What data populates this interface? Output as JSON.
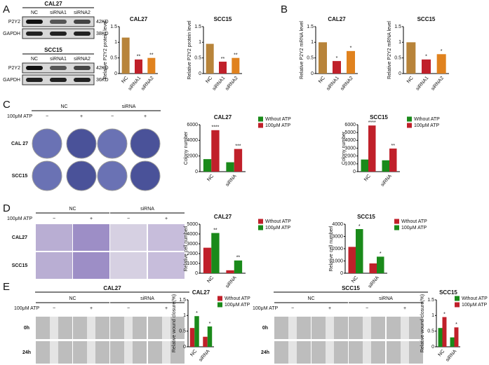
{
  "panel_labels": [
    "A",
    "B",
    "C",
    "D",
    "E"
  ],
  "blots": [
    {
      "title": "CAL27",
      "lanes": [
        "NC",
        "siRNA1",
        "siRNA2"
      ],
      "rows": [
        "P2Y2",
        "GAPDH"
      ],
      "sizes": [
        "42KD",
        "38KD"
      ]
    },
    {
      "title": "SCC15",
      "lanes": [
        "NC",
        "siRNA1",
        "siRNA2"
      ],
      "rows": [
        "P2Y2",
        "GAPDH"
      ],
      "sizes": [
        "42KD",
        "36KD"
      ]
    }
  ],
  "colony": {
    "groups": [
      "NC",
      "siRNA"
    ],
    "treatment": "100μM ATP",
    "signs": [
      "−",
      "+",
      "−",
      "+"
    ],
    "rows": [
      "CAL 27",
      "SCC15"
    ]
  },
  "invasion": {
    "groups": [
      "NC",
      "siRNA"
    ],
    "treatment": "100μM ATP",
    "signs": [
      "−",
      "+",
      "−",
      "+"
    ],
    "rows": [
      "CAL27",
      "SCC15"
    ]
  },
  "wound": [
    {
      "title": "CAL27",
      "groups": [
        "NC",
        "siRNA"
      ],
      "treatment": "100μM ATP",
      "signs": [
        "−",
        "+",
        "−",
        "+"
      ],
      "rows": [
        "0h",
        "24h"
      ]
    },
    {
      "title": "SCC15",
      "groups": [
        "NC",
        "siRNA"
      ],
      "treatment": "100μM ATP",
      "signs": [
        "−",
        "+",
        "−",
        "+"
      ],
      "rows": [
        "0h",
        "24h"
      ]
    }
  ],
  "chart_data": [
    {
      "type": "bar",
      "title": "CAL27",
      "ylabel": "Relative P2Y2 protein level",
      "categories": [
        "NC",
        "siRNA1",
        "siRNA2"
      ],
      "values": [
        1.15,
        0.45,
        0.5
      ],
      "colors": [
        "#b8843a",
        "#c0202a",
        "#e0821e"
      ],
      "significance": [
        null,
        "**",
        "**"
      ],
      "ylim": [
        0,
        1.5
      ],
      "yticks": [
        0,
        0.5,
        1,
        1.5
      ]
    },
    {
      "type": "bar",
      "title": "SCC15",
      "ylabel": "Relative P2Y2 protein level",
      "categories": [
        "NC",
        "siRNA1",
        "siRNA2"
      ],
      "values": [
        0.95,
        0.38,
        0.5
      ],
      "colors": [
        "#b8843a",
        "#c0202a",
        "#e0821e"
      ],
      "significance": [
        null,
        "**",
        "**"
      ],
      "ylim": [
        0,
        1.5
      ],
      "yticks": [
        0,
        0.5,
        1,
        1.5
      ]
    },
    {
      "type": "bar",
      "title": "CAL27",
      "ylabel": "Relative P2Y2 mRNA level",
      "categories": [
        "NC",
        "siRNA1",
        "siRNA2"
      ],
      "values": [
        1,
        0.4,
        0.72
      ],
      "colors": [
        "#b8843a",
        "#c0202a",
        "#e0821e"
      ],
      "significance": [
        null,
        "*",
        "*"
      ],
      "ylim": [
        0,
        1.5
      ],
      "yticks": [
        0,
        0.5,
        1,
        1.5
      ]
    },
    {
      "type": "bar",
      "title": "SCC15",
      "ylabel": "Relative P2Y2 mRNA level",
      "categories": [
        "NC",
        "siRNA1",
        "siRNA2"
      ],
      "values": [
        1,
        0.45,
        0.62
      ],
      "colors": [
        "#b8843a",
        "#c0202a",
        "#e0821e"
      ],
      "significance": [
        null,
        "*",
        "*"
      ],
      "ylim": [
        0,
        1.5
      ],
      "yticks": [
        0,
        0.5,
        1,
        1.5
      ]
    },
    {
      "type": "grouped_bar",
      "title": "CAL27",
      "ylabel": "Colony number",
      "categories": [
        "NC",
        "siRNA"
      ],
      "series": [
        {
          "name": "Wthout ATP",
          "color": "#1a8a1a",
          "values": [
            1600,
            1200
          ]
        },
        {
          "name": "100μM ATP",
          "color": "#c0202a",
          "values": [
            5300,
            2900
          ],
          "significance": [
            "****",
            "***"
          ]
        }
      ],
      "ylim": [
        0,
        6000
      ],
      "yticks": [
        0,
        2000,
        4000,
        6000
      ]
    },
    {
      "type": "grouped_bar",
      "title": "SCC15",
      "ylabel": "Colony number",
      "categories": [
        "NC",
        "siRNA"
      ],
      "series": [
        {
          "name": "Wthout ATP",
          "color": "#1a8a1a",
          "values": [
            1550,
            1450
          ]
        },
        {
          "name": "100μM ATP",
          "color": "#c0202a",
          "values": [
            5900,
            2950
          ],
          "significance": [
            "****",
            "**"
          ]
        }
      ],
      "ylim": [
        0,
        6000
      ],
      "yticks": [
        0,
        1000,
        2000,
        3000,
        4000,
        5000,
        6000
      ]
    },
    {
      "type": "grouped_bar",
      "title": "CAL27",
      "ylabel": "Relative cell numberl",
      "categories": [
        "NC",
        "siRNA"
      ],
      "series": [
        {
          "name": "Wthout ATP",
          "color": "#c0202a",
          "values": [
            2600,
            300
          ]
        },
        {
          "name": "100μM ATP",
          "color": "#1a8a1a",
          "values": [
            4100,
            1300
          ],
          "significance": [
            "**",
            "**"
          ]
        }
      ],
      "ylim": [
        0,
        5000
      ],
      "yticks": [
        0,
        1000,
        2000,
        3000,
        4000,
        5000
      ]
    },
    {
      "type": "grouped_bar",
      "title": "SCC15",
      "ylabel": "Relative cell numberl",
      "categories": [
        "NC",
        "siRNA"
      ],
      "series": [
        {
          "name": "Wthout ATP",
          "color": "#c0202a",
          "values": [
            2150,
            800
          ]
        },
        {
          "name": "100μM ATP",
          "color": "#1a8a1a",
          "values": [
            3600,
            1350
          ],
          "significance": [
            "*",
            "*"
          ]
        }
      ],
      "ylim": [
        0,
        4000
      ],
      "yticks": [
        0,
        1000,
        2000,
        3000,
        4000
      ]
    },
    {
      "type": "grouped_bar",
      "title": "CAL27",
      "ylabel": "Relative wound closure(%)",
      "categories": [
        "NC",
        "siRNA"
      ],
      "series": [
        {
          "name": "Wthout ATP",
          "color": "#c0202a",
          "values": [
            0.6,
            0.32
          ]
        },
        {
          "name": "100μM ATP",
          "color": "#1a8a1a",
          "values": [
            0.98,
            0.65
          ],
          "significance": [
            "*",
            "*"
          ]
        }
      ],
      "ylim": [
        0,
        1.5
      ],
      "yticks": [
        0,
        0.5,
        1,
        1.5
      ]
    },
    {
      "type": "grouped_bar",
      "title": "SCC15",
      "ylabel": "Relative wound closure(%)",
      "categories": [
        "NC",
        "siRNA"
      ],
      "series": [
        {
          "name": "Wthout ATP",
          "color": "#1a8a1a",
          "values": [
            0.6,
            0.3
          ]
        },
        {
          "name": "100μM ATP",
          "color": "#c0202a",
          "values": [
            0.95,
            0.62
          ],
          "significance": [
            "*",
            "*"
          ]
        }
      ],
      "ylim": [
        0,
        1.5
      ],
      "yticks": [
        0,
        0.5,
        1,
        1.5
      ]
    }
  ]
}
